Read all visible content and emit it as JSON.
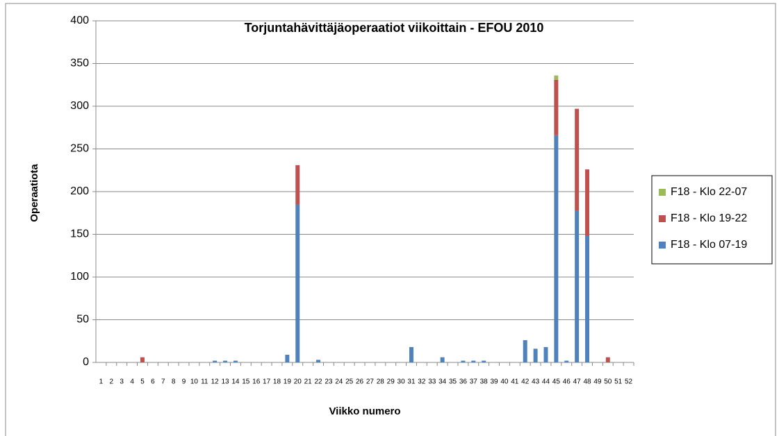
{
  "chart_data": {
    "type": "bar",
    "stacked": true,
    "title": "Torjuntahävittäjäoperaatiot viikoittain - EFOU 2010",
    "x_label": "Viikko numero",
    "y_label": "Operaatiota",
    "categories": [
      "1",
      "2",
      "3",
      "4",
      "5",
      "6",
      "7",
      "8",
      "9",
      "10",
      "11",
      "12",
      "13",
      "14",
      "15",
      "16",
      "17",
      "18",
      "19",
      "20",
      "21",
      "22",
      "23",
      "24",
      "25",
      "26",
      "27",
      "28",
      "29",
      "30",
      "31",
      "32",
      "33",
      "34",
      "35",
      "36",
      "37",
      "38",
      "39",
      "40",
      "41",
      "42",
      "43",
      "44",
      "45",
      "46",
      "47",
      "48",
      "49",
      "50",
      "51",
      "52"
    ],
    "series": [
      {
        "name": "F18 - Klo 07-19",
        "color": "#4f81bd",
        "values": [
          0,
          0,
          0,
          0,
          0,
          0,
          0,
          0,
          0,
          0,
          0,
          2,
          2,
          2,
          0,
          0,
          0,
          0,
          9,
          185,
          0,
          3,
          0,
          0,
          0,
          0,
          0,
          0,
          0,
          0,
          18,
          0,
          0,
          6,
          0,
          2,
          2,
          2,
          0,
          0,
          0,
          26,
          16,
          18,
          266,
          2,
          178,
          148,
          0,
          0,
          0,
          0
        ]
      },
      {
        "name": "F18 - Klo 19-22",
        "color": "#c0504d",
        "values": [
          0,
          0,
          0,
          0,
          6,
          0,
          0,
          0,
          0,
          0,
          0,
          0,
          0,
          0,
          0,
          0,
          0,
          0,
          0,
          46,
          0,
          0,
          0,
          0,
          0,
          0,
          0,
          0,
          0,
          0,
          0,
          0,
          0,
          0,
          0,
          0,
          0,
          0,
          0,
          0,
          0,
          0,
          0,
          0,
          65,
          0,
          119,
          78,
          0,
          6,
          0,
          0
        ]
      },
      {
        "name": "F18 - Klo 22-07",
        "color": "#9bbb59",
        "values": [
          0,
          0,
          0,
          0,
          0,
          0,
          0,
          0,
          0,
          0,
          0,
          0,
          0,
          0,
          0,
          0,
          0,
          0,
          0,
          0,
          0,
          0,
          0,
          0,
          0,
          0,
          0,
          0,
          0,
          0,
          0,
          0,
          0,
          0,
          0,
          0,
          0,
          0,
          0,
          0,
          0,
          0,
          0,
          0,
          5,
          0,
          0,
          0,
          0,
          0,
          0,
          0
        ]
      }
    ],
    "ylim": [
      0,
      400
    ],
    "yticks": [
      0,
      50,
      100,
      150,
      200,
      250,
      300,
      350,
      400
    ],
    "grid": true,
    "legend": "right"
  }
}
